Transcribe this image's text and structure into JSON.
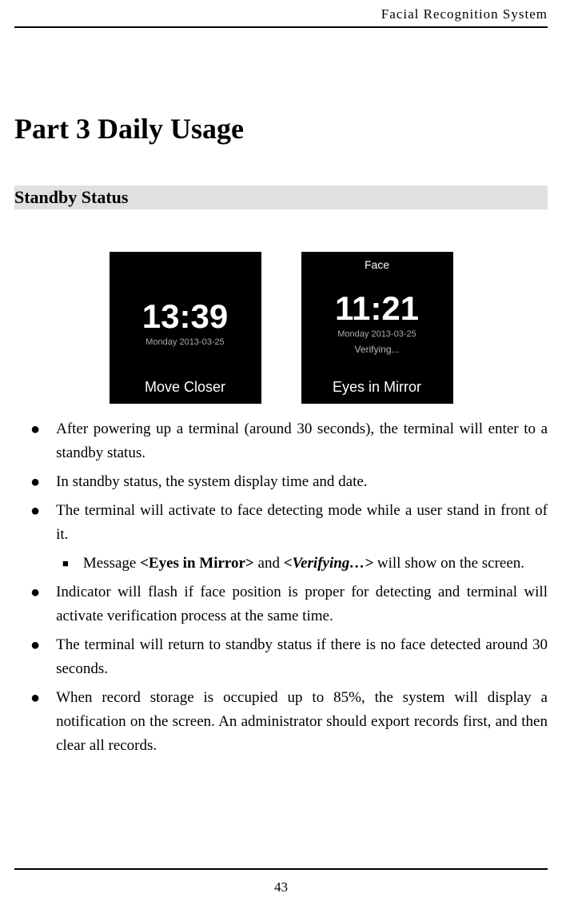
{
  "header": {
    "text": "Facial Recognition System"
  },
  "partTitle": "Part 3 Daily Usage",
  "sectionTitle": "Standby Status",
  "screens": {
    "left": {
      "time": "13:39",
      "date": "Monday 2013-03-25",
      "bottomText": "Move Closer",
      "bgColor": "#000000",
      "timeColor": "#ffffff",
      "dateColor": "#aaaaaa"
    },
    "right": {
      "topLabel": "Face",
      "time": "11:21",
      "date": "Monday 2013-03-25",
      "verifying": "Verifying...",
      "bottomText": "Eyes in Mirror",
      "bgColor": "#000000",
      "timeColor": "#ffffff",
      "dateColor": "#aaaaaa"
    }
  },
  "bullets": [
    {
      "text": "After powering up a terminal (around 30 seconds), the terminal will enter to a standby status."
    },
    {
      "text": "In standby status, the system display time and date."
    },
    {
      "text": "The terminal will activate to face detecting mode while a user stand in front of it.",
      "subBullets": [
        {
          "prefix": "Message ",
          "bold1": "<Eyes in Mirror>",
          "mid": " and ",
          "italic": "<Verifying…>",
          "suffix": " will show on the screen."
        }
      ]
    },
    {
      "text": "Indicator will flash if face position is proper for detecting and terminal will activate verification process at the same time."
    },
    {
      "text": "The terminal will return to standby status if there is no face detected around 30 seconds."
    },
    {
      "text": "When record storage is occupied up to 85%, the system will display a notification on the screen. An administrator should export records first, and then clear all records."
    }
  ],
  "pageNumber": "43",
  "styles": {
    "bodyWidth": 703,
    "bodyHeight": 1132,
    "headerFontSize": 17,
    "partTitleFontSize": 36,
    "sectionTitleFontSize": 22,
    "sectionBg": "#e0e0e0",
    "bulletTextFontSize": 19,
    "lineHeight": 30
  }
}
